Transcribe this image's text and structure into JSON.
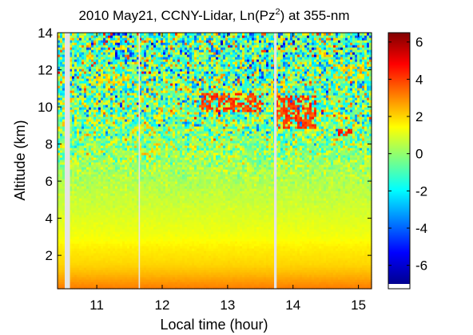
{
  "chart_data": {
    "type": "heatmap",
    "title": "2010 May21, CCNY-Lidar, Ln(Pz",
    "title_superscript": "2",
    "title_suffix": ") at 355-nm",
    "xlabel": "Local time (hour)",
    "ylabel": "Altitude (km)",
    "xlim": [
      10.4,
      15.2
    ],
    "ylim": [
      0.2,
      14.0
    ],
    "xticks": [
      11,
      12,
      13,
      14,
      15
    ],
    "xtick_labels": [
      "11",
      "12",
      "13",
      "14",
      "15"
    ],
    "yticks": [
      2,
      4,
      6,
      8,
      10,
      12,
      14
    ],
    "ytick_labels": [
      "2",
      "4",
      "6",
      "8",
      "10",
      "12",
      "14"
    ],
    "colorbar": {
      "colormap": "jet",
      "range": [
        -7,
        6.5
      ],
      "ticks": [
        6,
        4,
        2,
        0,
        -2,
        -4,
        -6
      ],
      "tick_labels": [
        "6",
        "4",
        "2",
        "0",
        "-2",
        "-4",
        "-6"
      ]
    },
    "data_gaps_hour": [
      [
        10.51,
        10.59
      ],
      [
        11.64,
        11.66
      ],
      [
        13.71,
        13.75
      ]
    ],
    "profile_mean_by_altitude": {
      "altitude_km": [
        0.2,
        0.5,
        1.0,
        1.5,
        2.0,
        2.5,
        3.0,
        4.0,
        5.0,
        6.0,
        7.0,
        8.0,
        9.0,
        10.0,
        11.0,
        12.0,
        13.0,
        14.0
      ],
      "ln_pz2": [
        3.2,
        2.9,
        2.4,
        2.0,
        1.8,
        1.6,
        1.3,
        1.0,
        0.7,
        0.4,
        0.2,
        0.0,
        -0.2,
        -0.4,
        -0.5,
        -0.6,
        -0.7,
        -0.8
      ],
      "noise_std": [
        0.05,
        0.05,
        0.05,
        0.05,
        0.06,
        0.08,
        0.1,
        0.15,
        0.25,
        0.5,
        1.2,
        2.0,
        2.6,
        3.0,
        3.2,
        3.4,
        3.6,
        3.8
      ]
    },
    "cloud_features": [
      {
        "time_hour": [
          12.55,
          13.55
        ],
        "altitude_km": [
          9.8,
          10.8
        ],
        "ln_pz2": 4.0
      },
      {
        "time_hour": [
          13.75,
          14.35
        ],
        "altitude_km": [
          8.9,
          10.7
        ],
        "ln_pz2": 4.0
      },
      {
        "time_hour": [
          14.7,
          14.9
        ],
        "altitude_km": [
          8.5,
          8.9
        ],
        "ln_pz2": 4.5
      },
      {
        "time_hour": [
          11.0,
          11.5
        ],
        "altitude_km": [
          11.1,
          11.8
        ],
        "ln_pz2": 2.0
      },
      {
        "time_hour": [
          14.6,
          15.1
        ],
        "altitude_km": [
          11.6,
          12.3
        ],
        "ln_pz2": 2.0
      }
    ]
  }
}
